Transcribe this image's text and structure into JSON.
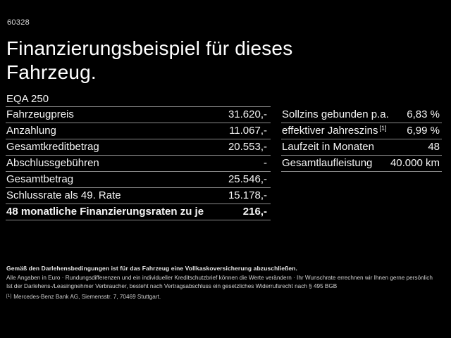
{
  "page": {
    "id_code": "60328",
    "title_line1": "Finanzierungsbeispiel für dieses",
    "title_line2": "Fahrzeug."
  },
  "left_table": {
    "header": "EQA 250",
    "rows": [
      {
        "label": "Fahrzeugpreis",
        "value": "31.620,-"
      },
      {
        "label": "Anzahlung",
        "value": "11.067,-"
      },
      {
        "label": "Gesamtkreditbetrag",
        "value": "20.553,-"
      },
      {
        "label": "Abschlussgebühren",
        "value": "-"
      },
      {
        "label": "Gesamtbetrag",
        "value": "25.546,-"
      },
      {
        "label": "Schlussrate als 49. Rate",
        "value": "15.178,-"
      },
      {
        "label": "48 monatliche Finanzierungsraten zu je",
        "value": "216,-"
      }
    ]
  },
  "right_table": {
    "rows": [
      {
        "label": "Sollzins gebunden p.a.",
        "value": "6,83 %"
      },
      {
        "label": "effektiver Jahreszins",
        "sup": "[1]",
        "value": "6,99 %"
      },
      {
        "label": "Laufzeit in Monaten",
        "value": "48"
      },
      {
        "label": "Gesamtlaufleistung",
        "value": "40.000 km"
      }
    ]
  },
  "footer": {
    "line1": "Gemäß den Darlehensbedingungen ist für das Fahrzeug eine Vollkaskoversicherung abzuschließen.",
    "line2": "Alle Angaben in Euro · Rundungsdifferenzen und ein individueller Kreditschutzbrief können die Werte verändern · Ihr Wunschrate errechnen wir Ihnen gerne persönlich",
    "line3": "Ist der Darlehens-/Leasingnehmer Verbraucher, besteht nach Vertragsabschluss ein gesetzliches Widerrufsrecht nach § 495 BGB",
    "footnote_marker": "[1]",
    "footnote_text": "Mercedes-Benz Bank AG, Siemensstr. 7, 70469 Stuttgart."
  },
  "colors": {
    "background": "#000000",
    "text": "#f5f5f5",
    "divider": "#8a8a8a"
  }
}
